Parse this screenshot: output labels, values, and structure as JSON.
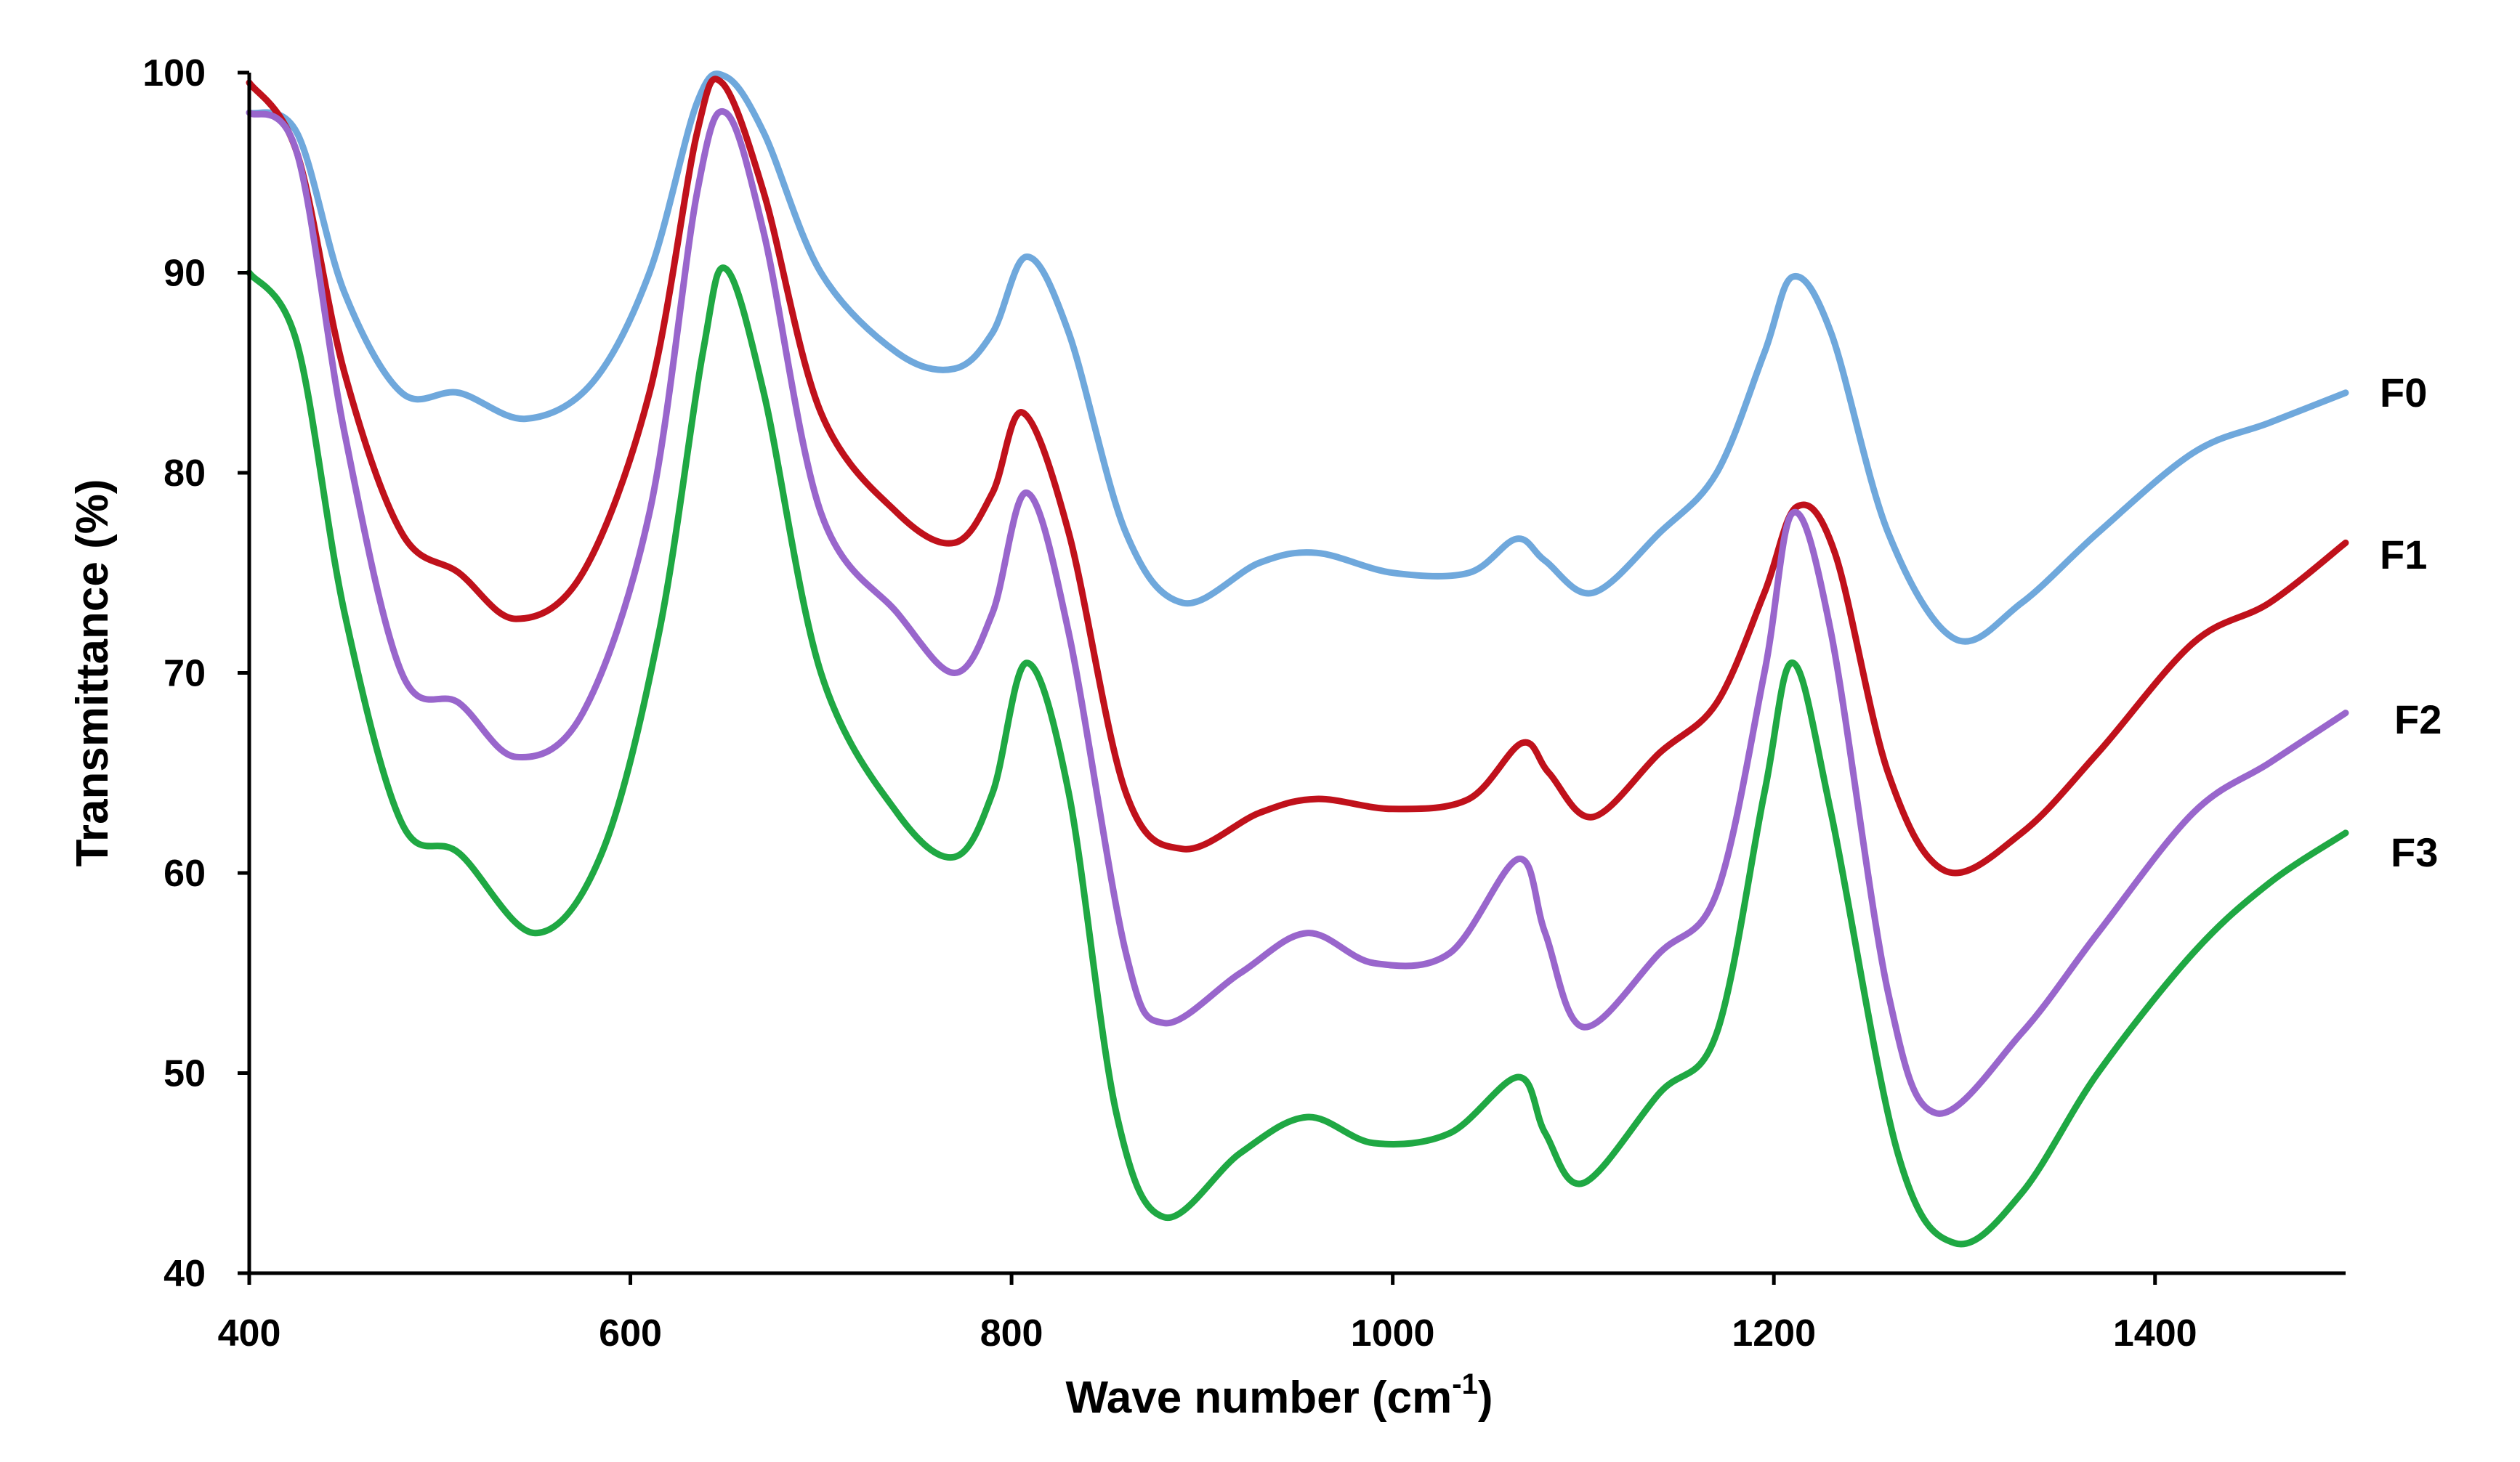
{
  "chart_data": {
    "type": "line",
    "title": "",
    "xlabel": "Wave number (cm",
    "xlabel_superscript": "-1",
    "xlabel_suffix": ")",
    "ylabel": "Transmittance  (%)",
    "xlim": [
      400,
      1500
    ],
    "ylim": [
      40,
      100
    ],
    "xticks": [
      400,
      600,
      800,
      1000,
      1200,
      1400
    ],
    "yticks": [
      40,
      50,
      60,
      70,
      80,
      90,
      100
    ],
    "grid": false,
    "legend": "inline labels at right end of each series",
    "series": [
      {
        "name": "F0",
        "color": "#6fa8dc",
        "x": [
          400,
          425,
          450,
          480,
          510,
          545,
          580,
          610,
          635,
          650,
          670,
          700,
          740,
          770,
          790,
          808,
          830,
          860,
          890,
          930,
          960,
          1000,
          1040,
          1065,
          1080,
          1105,
          1140,
          1170,
          1195,
          1210,
          1230,
          1260,
          1295,
          1330,
          1370,
          1420,
          1460,
          1500
        ],
        "y": [
          98,
          97,
          89,
          84,
          84,
          82.7,
          84.5,
          90,
          98.5,
          99.8,
          97,
          90,
          86,
          85.2,
          87,
          90.8,
          87,
          77,
          73.5,
          75.5,
          76,
          75,
          75,
          76.7,
          75.6,
          74,
          77,
          80,
          86,
          89.8,
          87,
          77,
          71.7,
          73.5,
          77,
          81,
          82.5,
          84
        ]
      },
      {
        "name": "F1",
        "color": "#c0111b",
        "x": [
          400,
          425,
          450,
          480,
          510,
          540,
          575,
          610,
          635,
          648,
          670,
          700,
          740,
          770,
          790,
          806,
          830,
          860,
          890,
          930,
          960,
          1000,
          1040,
          1068,
          1082,
          1105,
          1140,
          1170,
          1195,
          1212,
          1232,
          1260,
          1290,
          1330,
          1370,
          1420,
          1460,
          1500
        ],
        "y": [
          99.5,
          96,
          85,
          77,
          75,
          72.7,
          75,
          84,
          97,
          99.5,
          94,
          83,
          78,
          76.5,
          79,
          83,
          77,
          64,
          61.2,
          63,
          63.7,
          63.2,
          63.7,
          66.5,
          65,
          62.8,
          66,
          68.5,
          74,
          78.3,
          76,
          65,
          60.1,
          62,
          66,
          71.5,
          73.5,
          76.5
        ]
      },
      {
        "name": "F2",
        "color": "#9966cc",
        "x": [
          400,
          425,
          450,
          480,
          510,
          540,
          575,
          610,
          635,
          650,
          670,
          700,
          740,
          770,
          790,
          808,
          830,
          860,
          880,
          920,
          955,
          990,
          1030,
          1066,
          1080,
          1100,
          1140,
          1170,
          1195,
          1210,
          1230,
          1260,
          1285,
          1330,
          1370,
          1420,
          1460,
          1500
        ],
        "y": [
          98,
          96,
          82,
          70,
          68.5,
          65.8,
          68,
          78,
          94,
          98,
          92,
          78,
          73,
          70,
          73,
          79,
          72,
          56,
          52.5,
          55,
          57,
          55.5,
          56,
          60.7,
          57,
          52.3,
          56,
          59,
          70,
          78,
          72,
          54,
          48,
          52,
          57,
          63,
          65.5,
          68
        ]
      },
      {
        "name": "F3",
        "color": "#1fa843",
        "x": [
          400,
          425,
          450,
          480,
          510,
          550,
          585,
          615,
          638,
          650,
          670,
          700,
          740,
          770,
          790,
          808,
          830,
          855,
          880,
          920,
          955,
          990,
          1030,
          1066,
          1080,
          1100,
          1140,
          1170,
          1195,
          1210,
          1230,
          1265,
          1295,
          1330,
          1370,
          1420,
          1460,
          1500
        ],
        "y": [
          90,
          86.5,
          73,
          62.5,
          61,
          57,
          61,
          72,
          86,
          90.2,
          84,
          70,
          63,
          60.8,
          64,
          70.5,
          64,
          48,
          42.8,
          46,
          47.8,
          46.5,
          47,
          49.8,
          47,
          44.5,
          49,
          52,
          64,
          70.5,
          63,
          46,
          41.5,
          44,
          50,
          56,
          59.5,
          62
        ]
      }
    ]
  }
}
